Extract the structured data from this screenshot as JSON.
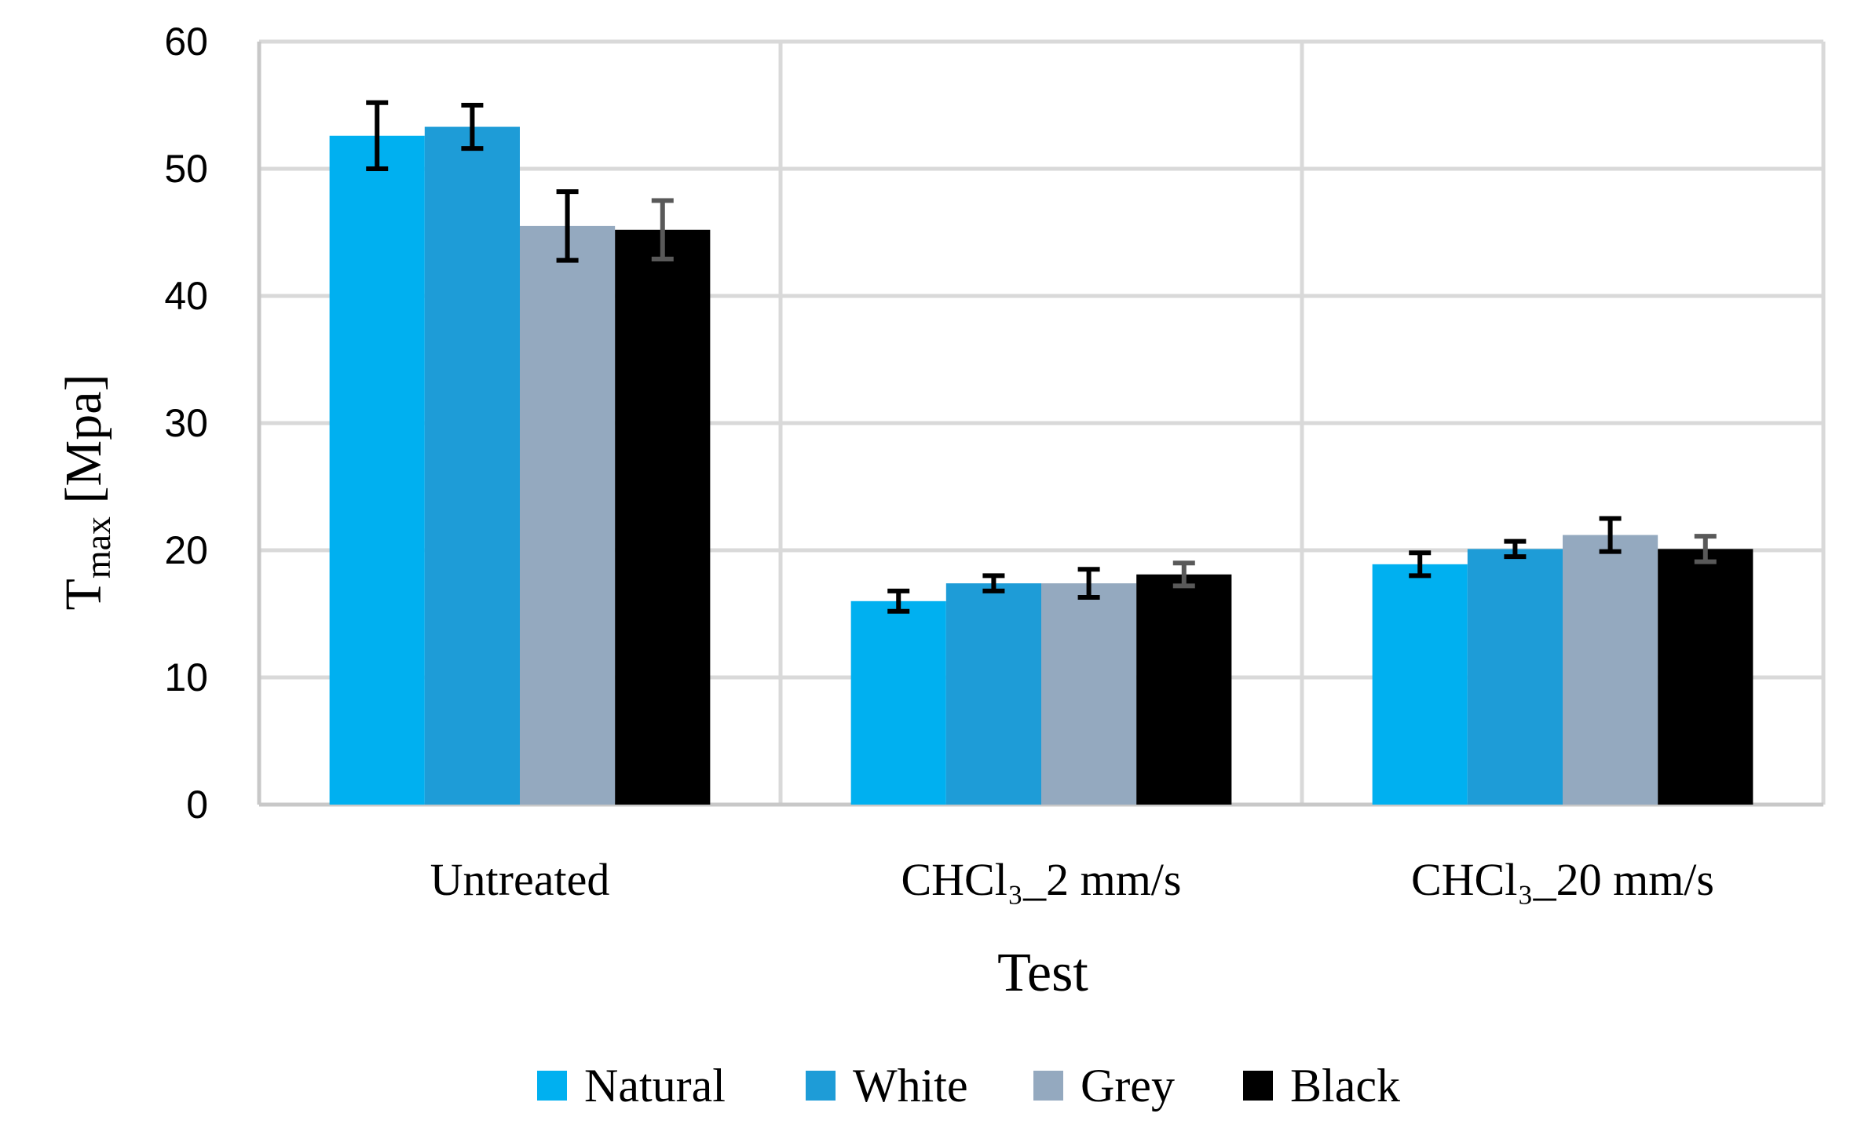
{
  "chart_data": {
    "type": "bar",
    "title": "",
    "xlabel": "Test",
    "ylabel": {
      "main": "T",
      "sub": "max",
      "rest": " [Mpa]"
    },
    "ylim": [
      0,
      60
    ],
    "yticks": [
      "0",
      "10",
      "20",
      "30",
      "40",
      "50",
      "60"
    ],
    "grid": true,
    "legend_position": "bottom",
    "categories": [
      "Untreated",
      "CHCl₃_2 mm/s",
      "CHCl₃_20 mm/s"
    ],
    "series": [
      {
        "name": "Natural",
        "color": "#00b0f0",
        "error_color": "#000000",
        "values": [
          52.6,
          16.0,
          18.9
        ],
        "errors": [
          2.6,
          0.8,
          0.9
        ]
      },
      {
        "name": "White",
        "color": "#1e9cd7",
        "error_color": "#000000",
        "values": [
          53.3,
          17.4,
          20.1
        ],
        "errors": [
          1.7,
          0.6,
          0.6
        ]
      },
      {
        "name": "Grey",
        "color": "#94a9bf",
        "error_color": "#000000",
        "values": [
          45.5,
          17.4,
          21.2
        ],
        "errors": [
          2.7,
          1.1,
          1.3
        ]
      },
      {
        "name": "Black",
        "color": "#000000",
        "error_color": "#595959",
        "values": [
          45.2,
          18.1,
          20.1
        ],
        "errors": [
          2.3,
          0.9,
          1.0
        ]
      }
    ]
  }
}
